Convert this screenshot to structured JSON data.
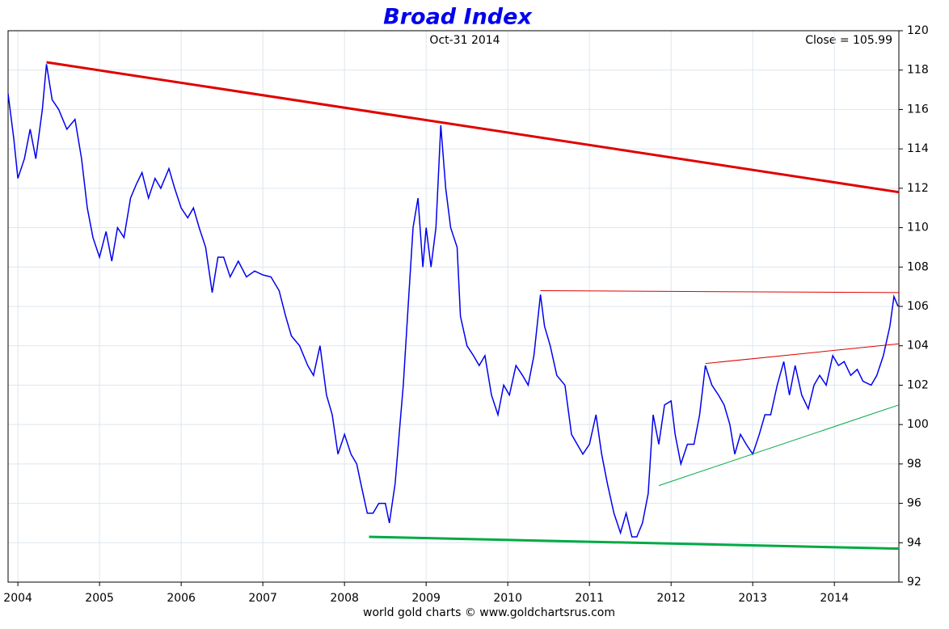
{
  "chart_data": {
    "type": "line",
    "title": "Broad Index",
    "subtitle": "Oct-31 2014",
    "annotation": "Close = 105.99",
    "source": "world gold charts © www.goldchartsrus.com",
    "xlim": [
      2003.88,
      2014.79
    ],
    "xticks": [
      2004,
      2005,
      2006,
      2007,
      2008,
      2009,
      2010,
      2011,
      2012,
      2013,
      2014
    ],
    "ylim": [
      92,
      120
    ],
    "yticks": [
      92,
      94,
      96,
      98,
      100,
      102,
      104,
      106,
      108,
      110,
      112,
      114,
      116,
      118,
      120
    ],
    "grid": true,
    "x": [
      2003.88,
      2003.95,
      2004.0,
      2004.08,
      2004.15,
      2004.22,
      2004.3,
      2004.35,
      2004.42,
      2004.5,
      2004.6,
      2004.7,
      2004.78,
      2004.85,
      2004.92,
      2005.0,
      2005.08,
      2005.15,
      2005.22,
      2005.3,
      2005.38,
      2005.45,
      2005.52,
      2005.6,
      2005.68,
      2005.75,
      2005.85,
      2005.92,
      2006.0,
      2006.08,
      2006.15,
      2006.22,
      2006.3,
      2006.38,
      2006.45,
      2006.52,
      2006.6,
      2006.7,
      2006.8,
      2006.9,
      2007.0,
      2007.1,
      2007.2,
      2007.28,
      2007.35,
      2007.45,
      2007.55,
      2007.62,
      2007.7,
      2007.78,
      2007.85,
      2007.92,
      2008.0,
      2008.08,
      2008.15,
      2008.2,
      2008.28,
      2008.35,
      2008.42,
      2008.5,
      2008.55,
      2008.62,
      2008.68,
      2008.72,
      2008.78,
      2008.84,
      2008.9,
      2008.96,
      2009.0,
      2009.06,
      2009.12,
      2009.18,
      2009.24,
      2009.3,
      2009.38,
      2009.42,
      2009.5,
      2009.58,
      2009.65,
      2009.72,
      2009.8,
      2009.88,
      2009.95,
      2010.02,
      2010.1,
      2010.18,
      2010.25,
      2010.32,
      2010.4,
      2010.45,
      2010.52,
      2010.6,
      2010.7,
      2010.78,
      2010.85,
      2010.92,
      2011.0,
      2011.08,
      2011.15,
      2011.22,
      2011.3,
      2011.38,
      2011.45,
      2011.52,
      2011.58,
      2011.65,
      2011.72,
      2011.78,
      2011.85,
      2011.92,
      2012.0,
      2012.05,
      2012.12,
      2012.2,
      2012.28,
      2012.35,
      2012.42,
      2012.5,
      2012.58,
      2012.65,
      2012.72,
      2012.78,
      2012.85,
      2012.92,
      2013.0,
      2013.08,
      2013.15,
      2013.22,
      2013.3,
      2013.38,
      2013.45,
      2013.52,
      2013.6,
      2013.68,
      2013.75,
      2013.82,
      2013.9,
      2013.98,
      2014.05,
      2014.12,
      2014.2,
      2014.28,
      2014.35,
      2014.45,
      2014.52,
      2014.6,
      2014.68,
      2014.73,
      2014.78
    ],
    "series": [
      {
        "color": "#0000ee",
        "values": [
          116.8,
          114.5,
          112.5,
          113.5,
          115,
          113.5,
          116,
          118.3,
          116.5,
          116,
          115,
          115.5,
          113.5,
          111,
          109.5,
          108.5,
          109.8,
          108.3,
          110,
          109.5,
          111.5,
          112.2,
          112.8,
          111.5,
          112.5,
          112,
          113,
          112,
          111,
          110.5,
          111,
          110,
          109,
          106.7,
          108.5,
          108.5,
          107.5,
          108.3,
          107.5,
          107.8,
          107.6,
          107.5,
          106.8,
          105.5,
          104.5,
          104,
          103,
          102.5,
          104,
          101.5,
          100.5,
          98.5,
          99.5,
          98.5,
          98,
          97,
          95.5,
          95.5,
          96,
          96,
          95,
          97,
          100,
          102,
          106,
          110,
          111.5,
          108,
          110,
          108,
          110,
          115.2,
          112,
          110,
          109,
          105.5,
          104,
          103.5,
          103,
          103.5,
          101.5,
          100.5,
          102,
          101.5,
          103,
          102.5,
          102,
          103.5,
          106.6,
          105,
          104,
          102.5,
          102,
          99.5,
          99,
          98.5,
          99,
          100.5,
          98.5,
          97,
          95.5,
          94.5,
          95.5,
          94.3,
          94.3,
          95,
          96.5,
          100.5,
          99,
          101,
          101.2,
          99.5,
          98,
          99,
          99,
          100.5,
          103,
          102,
          101.5,
          101,
          100,
          98.5,
          99.5,
          99,
          98.5,
          99.5,
          100.5,
          100.5,
          102,
          103.2,
          101.5,
          103,
          101.5,
          100.8,
          102,
          102.5,
          102,
          103.5,
          103,
          103.2,
          102.5,
          102.8,
          102.2,
          102,
          102.5,
          103.5,
          105,
          106.5,
          106
        ]
      }
    ],
    "trendlines": [
      {
        "color": "#e00000",
        "weight": "bold",
        "x": [
          2004.35,
          2014.79
        ],
        "values": [
          118.4,
          111.8
        ]
      },
      {
        "color": "#00aa44",
        "weight": "bold",
        "x": [
          2008.3,
          2014.79
        ],
        "values": [
          94.3,
          93.7
        ]
      },
      {
        "color": "#e00000",
        "weight": "normal",
        "x": [
          2010.4,
          2014.79
        ],
        "values": [
          106.8,
          106.7
        ]
      },
      {
        "color": "#e00000",
        "weight": "normal",
        "x": [
          2012.42,
          2014.79
        ],
        "values": [
          103.1,
          104.1
        ]
      },
      {
        "color": "#00aa44",
        "weight": "normal",
        "x": [
          2011.85,
          2014.79
        ],
        "values": [
          96.9,
          101.0
        ]
      }
    ]
  }
}
